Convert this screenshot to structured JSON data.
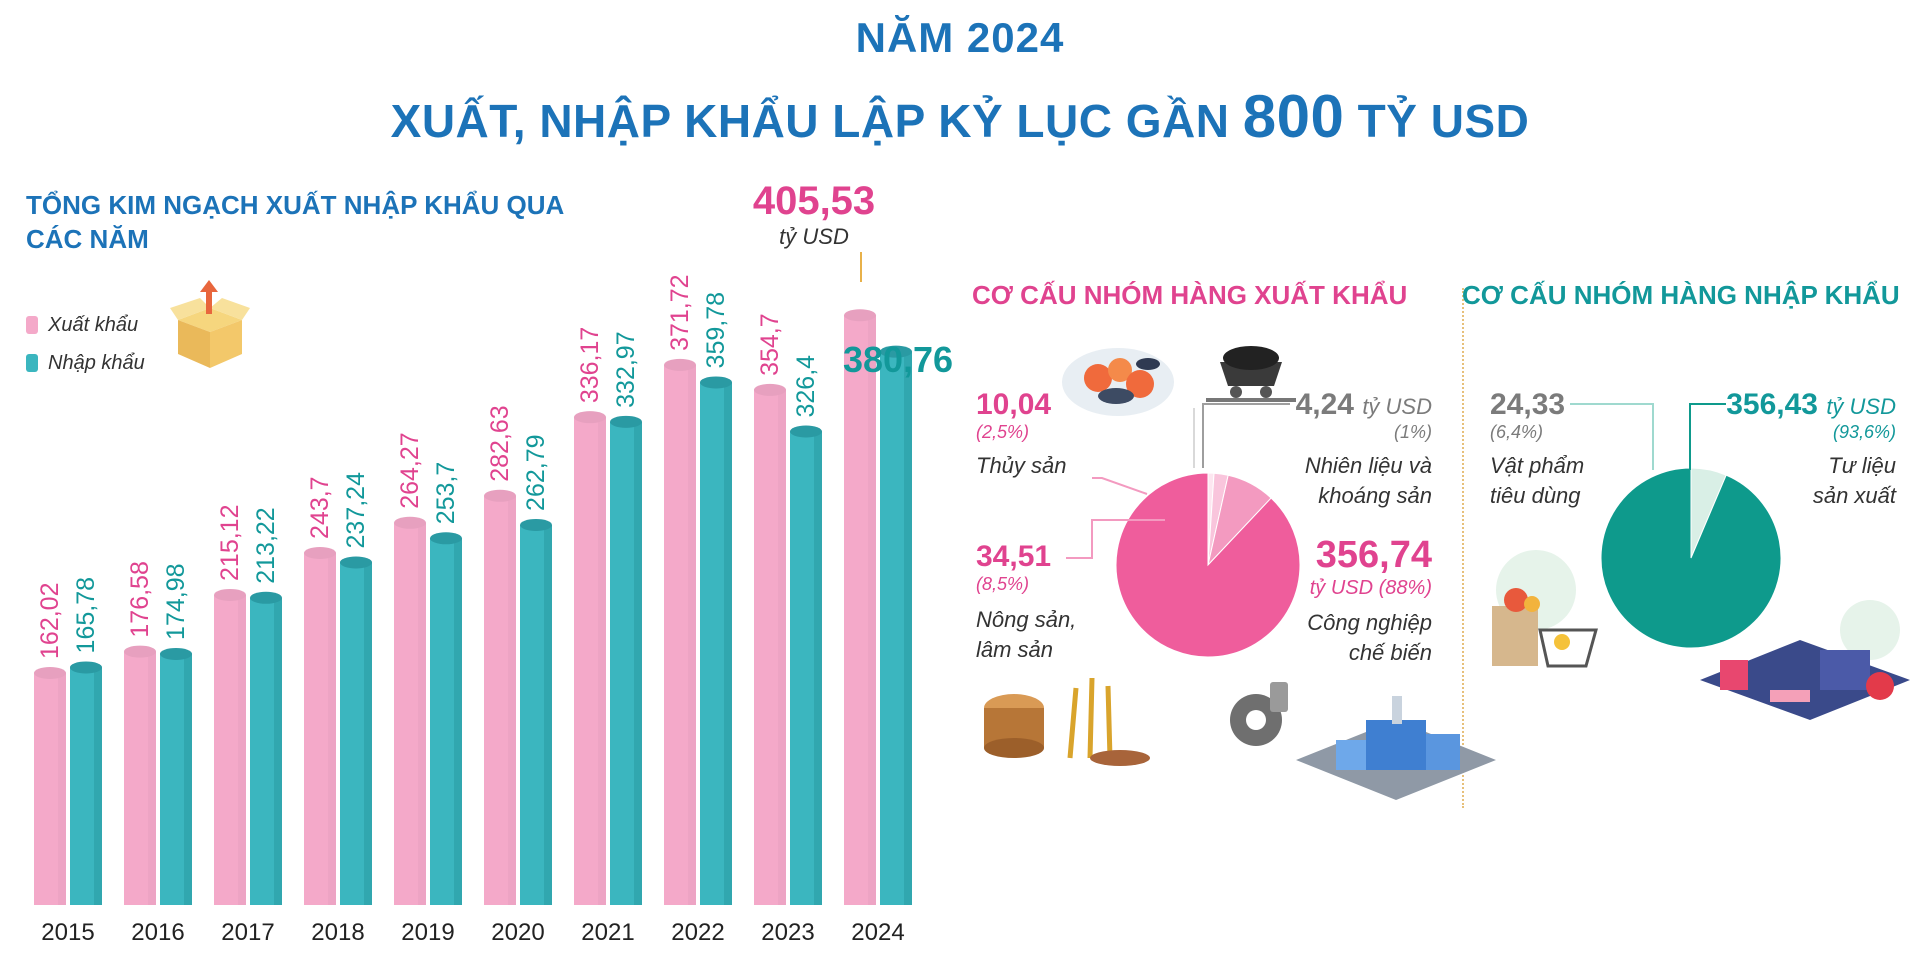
{
  "header": {
    "title_year": "NĂM 2024",
    "title_main_prefix": "XUẤT, NHẬP KHẨU LẬP KỶ LỤC GẦN",
    "title_main_number": "800",
    "title_main_suffix": "TỶ USD"
  },
  "bar_section": {
    "title": "TỔNG KIM NGẠCH XUẤT NHẬP KHẨU QUA CÁC NĂM",
    "unit_label": "tỷ USD"
  },
  "colors": {
    "export": "#f4a9c9",
    "import": "#3bb6bf",
    "pink_text": "#e0438f",
    "teal_text": "#12989a",
    "blue_title": "#1c73b8"
  },
  "chart_data": [
    {
      "type": "bar",
      "title": "TỔNG KIM NGẠCH XUẤT NHẬP KHẨU QUA CÁC NĂM",
      "categories": [
        "2015",
        "2016",
        "2017",
        "2018",
        "2019",
        "2020",
        "2021",
        "2022",
        "2023",
        "2024"
      ],
      "series": [
        {
          "name": "Xuất khẩu",
          "values": [
            162.02,
            176.58,
            215.12,
            243.7,
            264.27,
            282.63,
            336.17,
            371.72,
            354.7,
            405.53
          ],
          "labels": [
            "162,02",
            "176,58",
            "215,12",
            "243,7",
            "264,27",
            "282,63",
            "336,17",
            "371,72",
            "354,7",
            "405,53"
          ]
        },
        {
          "name": "Nhập khẩu",
          "values": [
            165.78,
            174.98,
            213.22,
            237.24,
            253.7,
            262.79,
            332.97,
            359.78,
            326.4,
            380.76
          ],
          "labels": [
            "165,78",
            "174,98",
            "213,22",
            "237,24",
            "253,7",
            "262,79",
            "332,97",
            "359,78",
            "326,4",
            "380,76"
          ]
        }
      ],
      "xlabel": "",
      "ylabel": "tỷ USD",
      "ylim": [
        0,
        420
      ],
      "legend": "top-left"
    },
    {
      "type": "pie",
      "title": "CƠ CẤU NHÓM HÀNG XUẤT KHẨU",
      "unit": "tỷ USD",
      "slices": [
        {
          "name": "Công nghiệp chế biến",
          "value": 356.74,
          "percent": 88,
          "value_label": "356,74",
          "percent_label": "(88%)",
          "color": "#ef5d9c"
        },
        {
          "name": "Nông sản, lâm sản",
          "value": 34.51,
          "percent": 8.5,
          "value_label": "34,51",
          "percent_label": "(8,5%)",
          "color": "#f39ac0"
        },
        {
          "name": "Thủy sản",
          "value": 10.04,
          "percent": 2.5,
          "value_label": "10,04",
          "percent_label": "(2,5%)",
          "color": "#f9c5dc"
        },
        {
          "name": "Nhiên liệu và khoáng sản",
          "value": 4.24,
          "percent": 1,
          "value_label": "4,24",
          "percent_label": "(1%)",
          "color": "#fde6f0"
        }
      ]
    },
    {
      "type": "pie",
      "title": "CƠ CẤU NHÓM HÀNG NHẬP KHẨU",
      "unit": "tỷ USD",
      "slices": [
        {
          "name": "Tư liệu sản xuất",
          "value": 356.43,
          "percent": 93.6,
          "value_label": "356,43",
          "percent_label": "(93,6%)",
          "color": "#0e9a8c"
        },
        {
          "name": "Vật phẩm tiêu dùng",
          "value": 24.33,
          "percent": 6.4,
          "value_label": "24,33",
          "percent_label": "(6,4%)",
          "color": "#d9efe6"
        }
      ]
    }
  ],
  "export_pie_labels": {
    "thuy_san": "Thủy sản",
    "nhien_lieu_line1": "Nhiên liệu và",
    "nhien_lieu_line2": "khoáng sản",
    "nong_san_line1": "Nông sản,",
    "nong_san_line2": "lâm sản",
    "cong_nghiep_line1": "Công nghiệp",
    "cong_nghiep_line2": "chế biến",
    "big_unit": "tỷ USD (88%)"
  },
  "import_pie_labels": {
    "vat_pham_line1": "Vật phẩm",
    "vat_pham_line2": "tiêu dùng",
    "tu_lieu_line1": "Tư liệu",
    "tu_lieu_line2": "sản xuất"
  },
  "icons": [
    "cardboard-box-icon",
    "seafood-platter-icon",
    "coal-cart-icon",
    "wood-grain-icon",
    "gear-piston-icon",
    "factory-icon",
    "grocery-basket-icon",
    "textile-machine-icon"
  ]
}
